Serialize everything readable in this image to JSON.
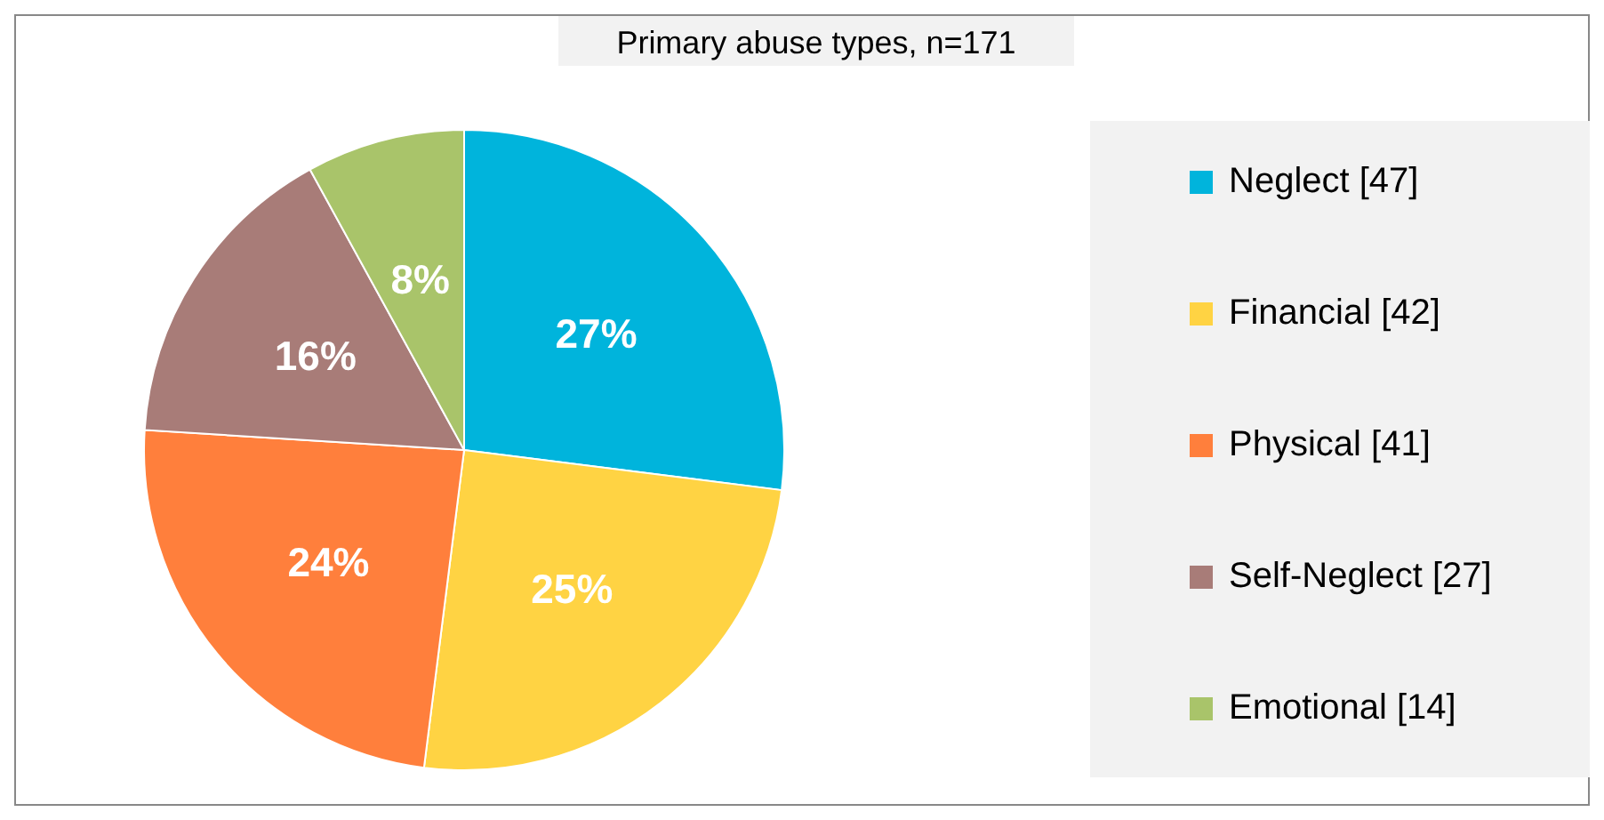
{
  "chart_data": {
    "type": "pie",
    "title": "Primary abuse types, n=171",
    "categories": [
      "Neglect [47]",
      "Financial [42]",
      "Physical [41]",
      "Self-Neglect [27]",
      "Emotional [14]"
    ],
    "values": [
      27,
      25,
      24,
      16,
      8
    ],
    "colors": [
      "#00b4dc",
      "#ffd343",
      "#ff7f3c",
      "#a87c78",
      "#a9c46a"
    ],
    "value_labels": [
      "27%",
      "25%",
      "24%",
      "16%",
      "8%"
    ],
    "legend": "right"
  }
}
